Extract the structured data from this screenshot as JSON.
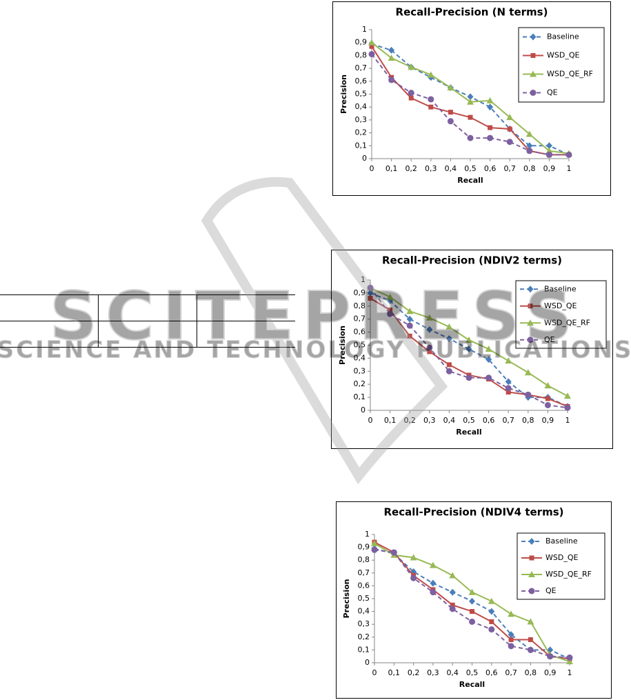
{
  "chart_data": [
    {
      "type": "line",
      "title": "Recall-Precision (N terms)",
      "x_label": "Recall",
      "y_label": "Precision",
      "x": [
        0,
        0.1,
        0.2,
        0.3,
        0.4,
        0.5,
        0.6,
        0.7,
        0.8,
        0.9,
        1
      ],
      "xlim": [
        0,
        1
      ],
      "ylim": [
        0,
        1
      ],
      "xticks": [
        0,
        {
          "value": 0.1,
          "label": "0,1"
        },
        {
          "value": 0.2,
          "label": "0,2"
        },
        {
          "value": 0.3,
          "label": "0,3"
        },
        {
          "value": 0.4,
          "label": "0,4"
        },
        {
          "value": 0.5,
          "label": "0,5"
        },
        {
          "value": 0.6,
          "label": "0,6"
        },
        {
          "value": 0.7,
          "label": "0,7"
        },
        {
          "value": 0.8,
          "label": "0,8"
        },
        {
          "value": 0.9,
          "label": "0,9"
        },
        1
      ],
      "yticks": [
        0,
        {
          "value": 0.1,
          "label": "0,1"
        },
        {
          "value": 0.2,
          "label": "0,2"
        },
        {
          "value": 0.3,
          "label": "0,3"
        },
        {
          "value": 0.4,
          "label": "0,4"
        },
        {
          "value": 0.5,
          "label": "0,5"
        },
        {
          "value": 0.6,
          "label": "0,6"
        },
        {
          "value": 0.7,
          "label": "0,7"
        },
        {
          "value": 0.8,
          "label": "0,8"
        },
        {
          "value": 0.9,
          "label": "0,9"
        },
        1
      ],
      "grid": false,
      "legend": "upper right",
      "series": [
        {
          "name": "Baseline",
          "color": "#4a7ebb",
          "marker": "diamond",
          "dashed": true,
          "values": [
            0.89,
            0.84,
            0.71,
            0.63,
            0.55,
            0.48,
            0.4,
            0.23,
            0.1,
            0.1,
            0.03
          ]
        },
        {
          "name": "WSD_QE",
          "color": "#be4b48",
          "marker": "square",
          "dashed": false,
          "values": [
            0.87,
            0.63,
            0.47,
            0.4,
            0.36,
            0.32,
            0.24,
            0.23,
            0.06,
            0.03,
            0.03
          ]
        },
        {
          "name": "WSD_QE_RF",
          "color": "#98b954",
          "marker": "triangle",
          "dashed": false,
          "values": [
            0.9,
            0.78,
            0.71,
            0.65,
            0.55,
            0.44,
            0.45,
            0.32,
            0.19,
            0.06,
            0.04
          ]
        },
        {
          "name": "QE",
          "color": "#7d60a0",
          "marker": "circle",
          "dashed": true,
          "values": [
            0.81,
            0.61,
            0.51,
            0.46,
            0.29,
            0.16,
            0.16,
            0.13,
            0.06,
            0.03,
            0.03
          ]
        }
      ]
    },
    {
      "type": "line",
      "title": "Recall-Precision (NDIV2 terms)",
      "x_label": "Recall",
      "y_label": "Precision",
      "x": [
        0,
        0.1,
        0.2,
        0.3,
        0.4,
        0.5,
        0.6,
        0.7,
        0.8,
        0.9,
        1
      ],
      "xlim": [
        0,
        1
      ],
      "ylim": [
        0,
        1
      ],
      "xticks": [
        0,
        {
          "value": 0.1,
          "label": "0,1"
        },
        {
          "value": 0.2,
          "label": "0,2"
        },
        {
          "value": 0.3,
          "label": "0,3"
        },
        {
          "value": 0.4,
          "label": "0,4"
        },
        {
          "value": 0.5,
          "label": "0,5"
        },
        {
          "value": 0.6,
          "label": "0,6"
        },
        {
          "value": 0.7,
          "label": "0,7"
        },
        {
          "value": 0.8,
          "label": "0,8"
        },
        {
          "value": 0.9,
          "label": "0,9"
        },
        1
      ],
      "yticks": [
        0,
        {
          "value": 0.1,
          "label": "0,1"
        },
        {
          "value": 0.2,
          "label": "0,2"
        },
        {
          "value": 0.3,
          "label": "0,3"
        },
        {
          "value": 0.4,
          "label": "0,4"
        },
        {
          "value": 0.5,
          "label": "0,5"
        },
        {
          "value": 0.6,
          "label": "0,6"
        },
        {
          "value": 0.7,
          "label": "0,7"
        },
        {
          "value": 0.8,
          "label": "0,8"
        },
        {
          "value": 0.9,
          "label": "0,9"
        },
        1
      ],
      "grid": false,
      "legend": "upper right",
      "series": [
        {
          "name": "Baseline",
          "color": "#4a7ebb",
          "marker": "diamond",
          "dashed": true,
          "values": [
            0.9,
            0.84,
            0.7,
            0.62,
            0.55,
            0.47,
            0.39,
            0.22,
            0.1,
            0.1,
            0.03
          ]
        },
        {
          "name": "WSD_QE",
          "color": "#be4b48",
          "marker": "square",
          "dashed": false,
          "values": [
            0.86,
            0.77,
            0.57,
            0.45,
            0.35,
            0.27,
            0.24,
            0.14,
            0.12,
            0.09,
            0.03
          ]
        },
        {
          "name": "WSD_QE_RF",
          "color": "#98b954",
          "marker": "triangle",
          "dashed": false,
          "values": [
            0.94,
            0.87,
            0.76,
            0.71,
            0.64,
            0.54,
            0.47,
            0.38,
            0.29,
            0.19,
            0.11
          ]
        },
        {
          "name": "QE",
          "color": "#7d60a0",
          "marker": "circle",
          "dashed": true,
          "values": [
            0.94,
            0.74,
            0.65,
            0.48,
            0.3,
            0.25,
            0.25,
            0.17,
            0.12,
            0.04,
            0.02
          ]
        }
      ]
    },
    {
      "type": "line",
      "title": "Recall-Precision (NDIV4 terms)",
      "x_label": "Recall",
      "y_label": "Precision",
      "x": [
        0,
        0.1,
        0.2,
        0.3,
        0.4,
        0.5,
        0.6,
        0.7,
        0.8,
        0.9,
        1
      ],
      "xlim": [
        0,
        1
      ],
      "ylim": [
        0,
        1
      ],
      "xticks": [
        0,
        {
          "value": 0.1,
          "label": "0,1"
        },
        {
          "value": 0.2,
          "label": "0,2"
        },
        {
          "value": 0.3,
          "label": "0,3"
        },
        {
          "value": 0.4,
          "label": "0,4"
        },
        {
          "value": 0.5,
          "label": "0,5"
        },
        {
          "value": 0.6,
          "label": "0,6"
        },
        {
          "value": 0.7,
          "label": "0,7"
        },
        {
          "value": 0.8,
          "label": "0,8"
        },
        {
          "value": 0.9,
          "label": "0,9"
        },
        1
      ],
      "yticks": [
        0,
        {
          "value": 0.1,
          "label": "0,1"
        },
        {
          "value": 0.2,
          "label": "0,2"
        },
        {
          "value": 0.3,
          "label": "0,3"
        },
        {
          "value": 0.4,
          "label": "0,4"
        },
        {
          "value": 0.5,
          "label": "0,5"
        },
        {
          "value": 0.6,
          "label": "0,6"
        },
        {
          "value": 0.7,
          "label": "0,7"
        },
        {
          "value": 0.8,
          "label": "0,8"
        },
        {
          "value": 0.9,
          "label": "0,9"
        },
        1
      ],
      "grid": false,
      "legend": "upper right",
      "series": [
        {
          "name": "Baseline",
          "color": "#4a7ebb",
          "marker": "diamond",
          "dashed": true,
          "values": [
            0.89,
            0.85,
            0.71,
            0.62,
            0.55,
            0.48,
            0.4,
            0.22,
            0.1,
            0.1,
            0.03
          ]
        },
        {
          "name": "WSD_QE",
          "color": "#be4b48",
          "marker": "square",
          "dashed": false,
          "values": [
            0.94,
            0.86,
            0.68,
            0.57,
            0.45,
            0.4,
            0.32,
            0.18,
            0.18,
            0.05,
            0.03
          ]
        },
        {
          "name": "WSD_QE_RF",
          "color": "#98b954",
          "marker": "triangle",
          "dashed": false,
          "values": [
            0.93,
            0.84,
            0.82,
            0.76,
            0.68,
            0.55,
            0.48,
            0.38,
            0.32,
            0.06,
            0.01
          ]
        },
        {
          "name": "QE",
          "color": "#7d60a0",
          "marker": "circle",
          "dashed": true,
          "values": [
            0.88,
            0.86,
            0.66,
            0.55,
            0.42,
            0.32,
            0.26,
            0.13,
            0.1,
            0.05,
            0.04
          ]
        }
      ]
    }
  ],
  "watermark": {
    "title": "SCITEPRESS",
    "subtitle": "SCIENCE AND TECHNOLOGY PUBLICATIONS"
  }
}
